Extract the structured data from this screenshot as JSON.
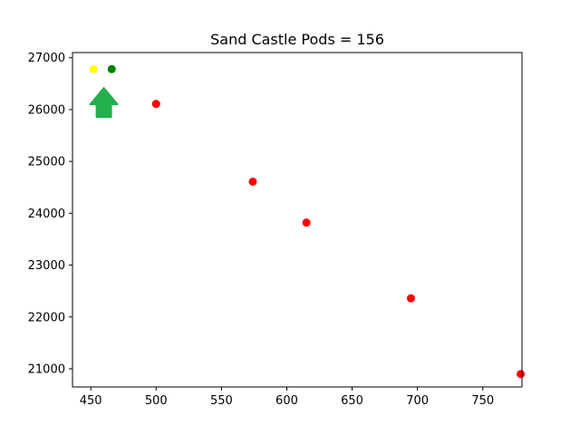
{
  "chart_data": {
    "type": "scatter",
    "title": "Sand Castle Pods = 156",
    "xlabel": "",
    "ylabel": "",
    "xlim": [
      436,
      780
    ],
    "ylim": [
      20650,
      27100
    ],
    "x_ticks": [
      450,
      500,
      550,
      600,
      650,
      700,
      750
    ],
    "y_ticks": [
      21000,
      22000,
      23000,
      24000,
      25000,
      26000,
      27000
    ],
    "grid": false,
    "points": [
      {
        "x": 452,
        "y": 26780,
        "color": "#ffff00"
      },
      {
        "x": 466,
        "y": 26780,
        "color": "#008000"
      },
      {
        "x": 500,
        "y": 26110,
        "color": "#ff0000"
      },
      {
        "x": 574,
        "y": 24610,
        "color": "#ff0000"
      },
      {
        "x": 615,
        "y": 23820,
        "color": "#ff0000"
      },
      {
        "x": 695,
        "y": 22360,
        "color": "#ff0000"
      },
      {
        "x": 779,
        "y": 20900,
        "color": "#ff0000"
      }
    ],
    "marker": {
      "icon": "up-arrow-icon",
      "x": 460,
      "y": 26050,
      "color": "#22b14c"
    }
  }
}
